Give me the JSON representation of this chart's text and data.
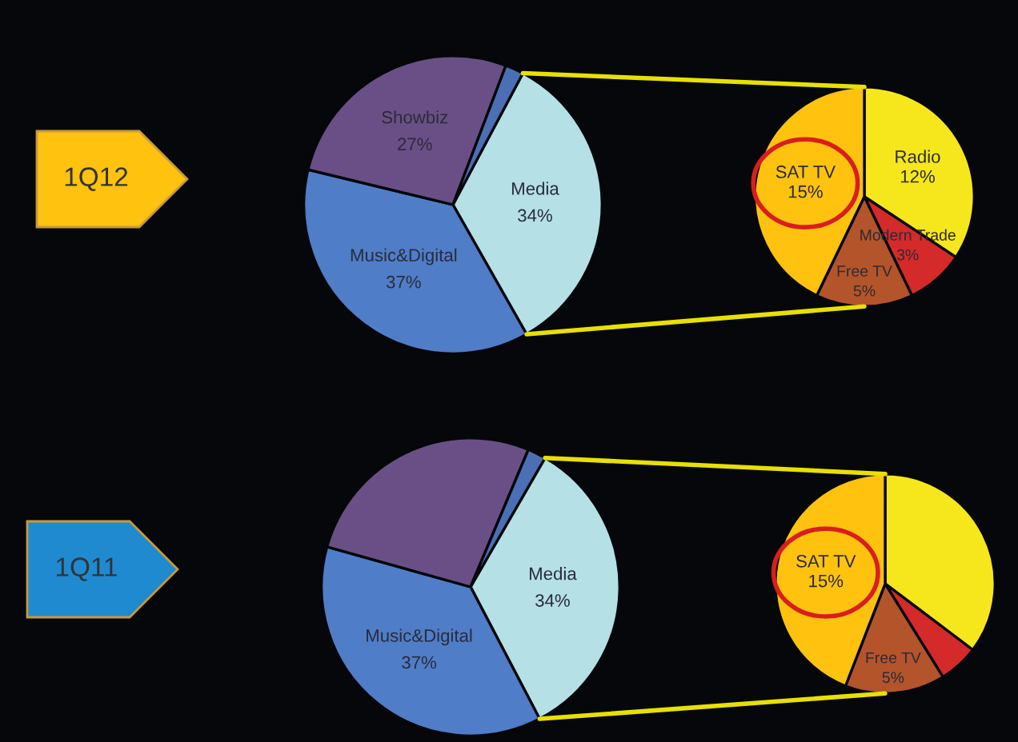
{
  "chart_data": [
    {
      "type": "pie",
      "title": "1Q12",
      "categories": [
        "Media",
        "Music&Digital",
        "Showbiz",
        null
      ],
      "values": [
        34,
        37,
        27,
        2
      ],
      "colors": [
        "#b4e0e6",
        "#4f7dc8",
        "#6a4f86",
        "#4a6fb5"
      ],
      "value_labels": [
        "34%",
        "37%",
        "27%",
        null
      ]
    },
    {
      "type": "pie",
      "categories": [
        "Radio",
        "Modern Trade",
        "Free TV",
        "SAT TV"
      ],
      "values": [
        12,
        3,
        5,
        15
      ],
      "colors": [
        "#f5e71c",
        "#d42a2a",
        "#b4542a",
        "#ffc20e"
      ],
      "value_labels": [
        "12%",
        "3%",
        "5%",
        "15%"
      ]
    },
    {
      "type": "pie",
      "title": "1Q11",
      "categories": [
        "Media",
        "Music&Digital",
        null,
        null
      ],
      "values": [
        34,
        37,
        27,
        2
      ],
      "colors": [
        "#b4e0e6",
        "#4f7dc8",
        "#6a4f86",
        "#4a6fb5"
      ],
      "value_labels": [
        "34%",
        "37%",
        null,
        null
      ]
    },
    {
      "type": "pie",
      "categories": [
        null,
        null,
        "Free TV",
        "SAT TV"
      ],
      "values": [
        12,
        2,
        5,
        15
      ],
      "colors": [
        "#f5e71c",
        "#d42a2a",
        "#b4542a",
        "#ffc20e"
      ],
      "value_labels": [
        null,
        null,
        "5%",
        "15%"
      ]
    }
  ]
}
